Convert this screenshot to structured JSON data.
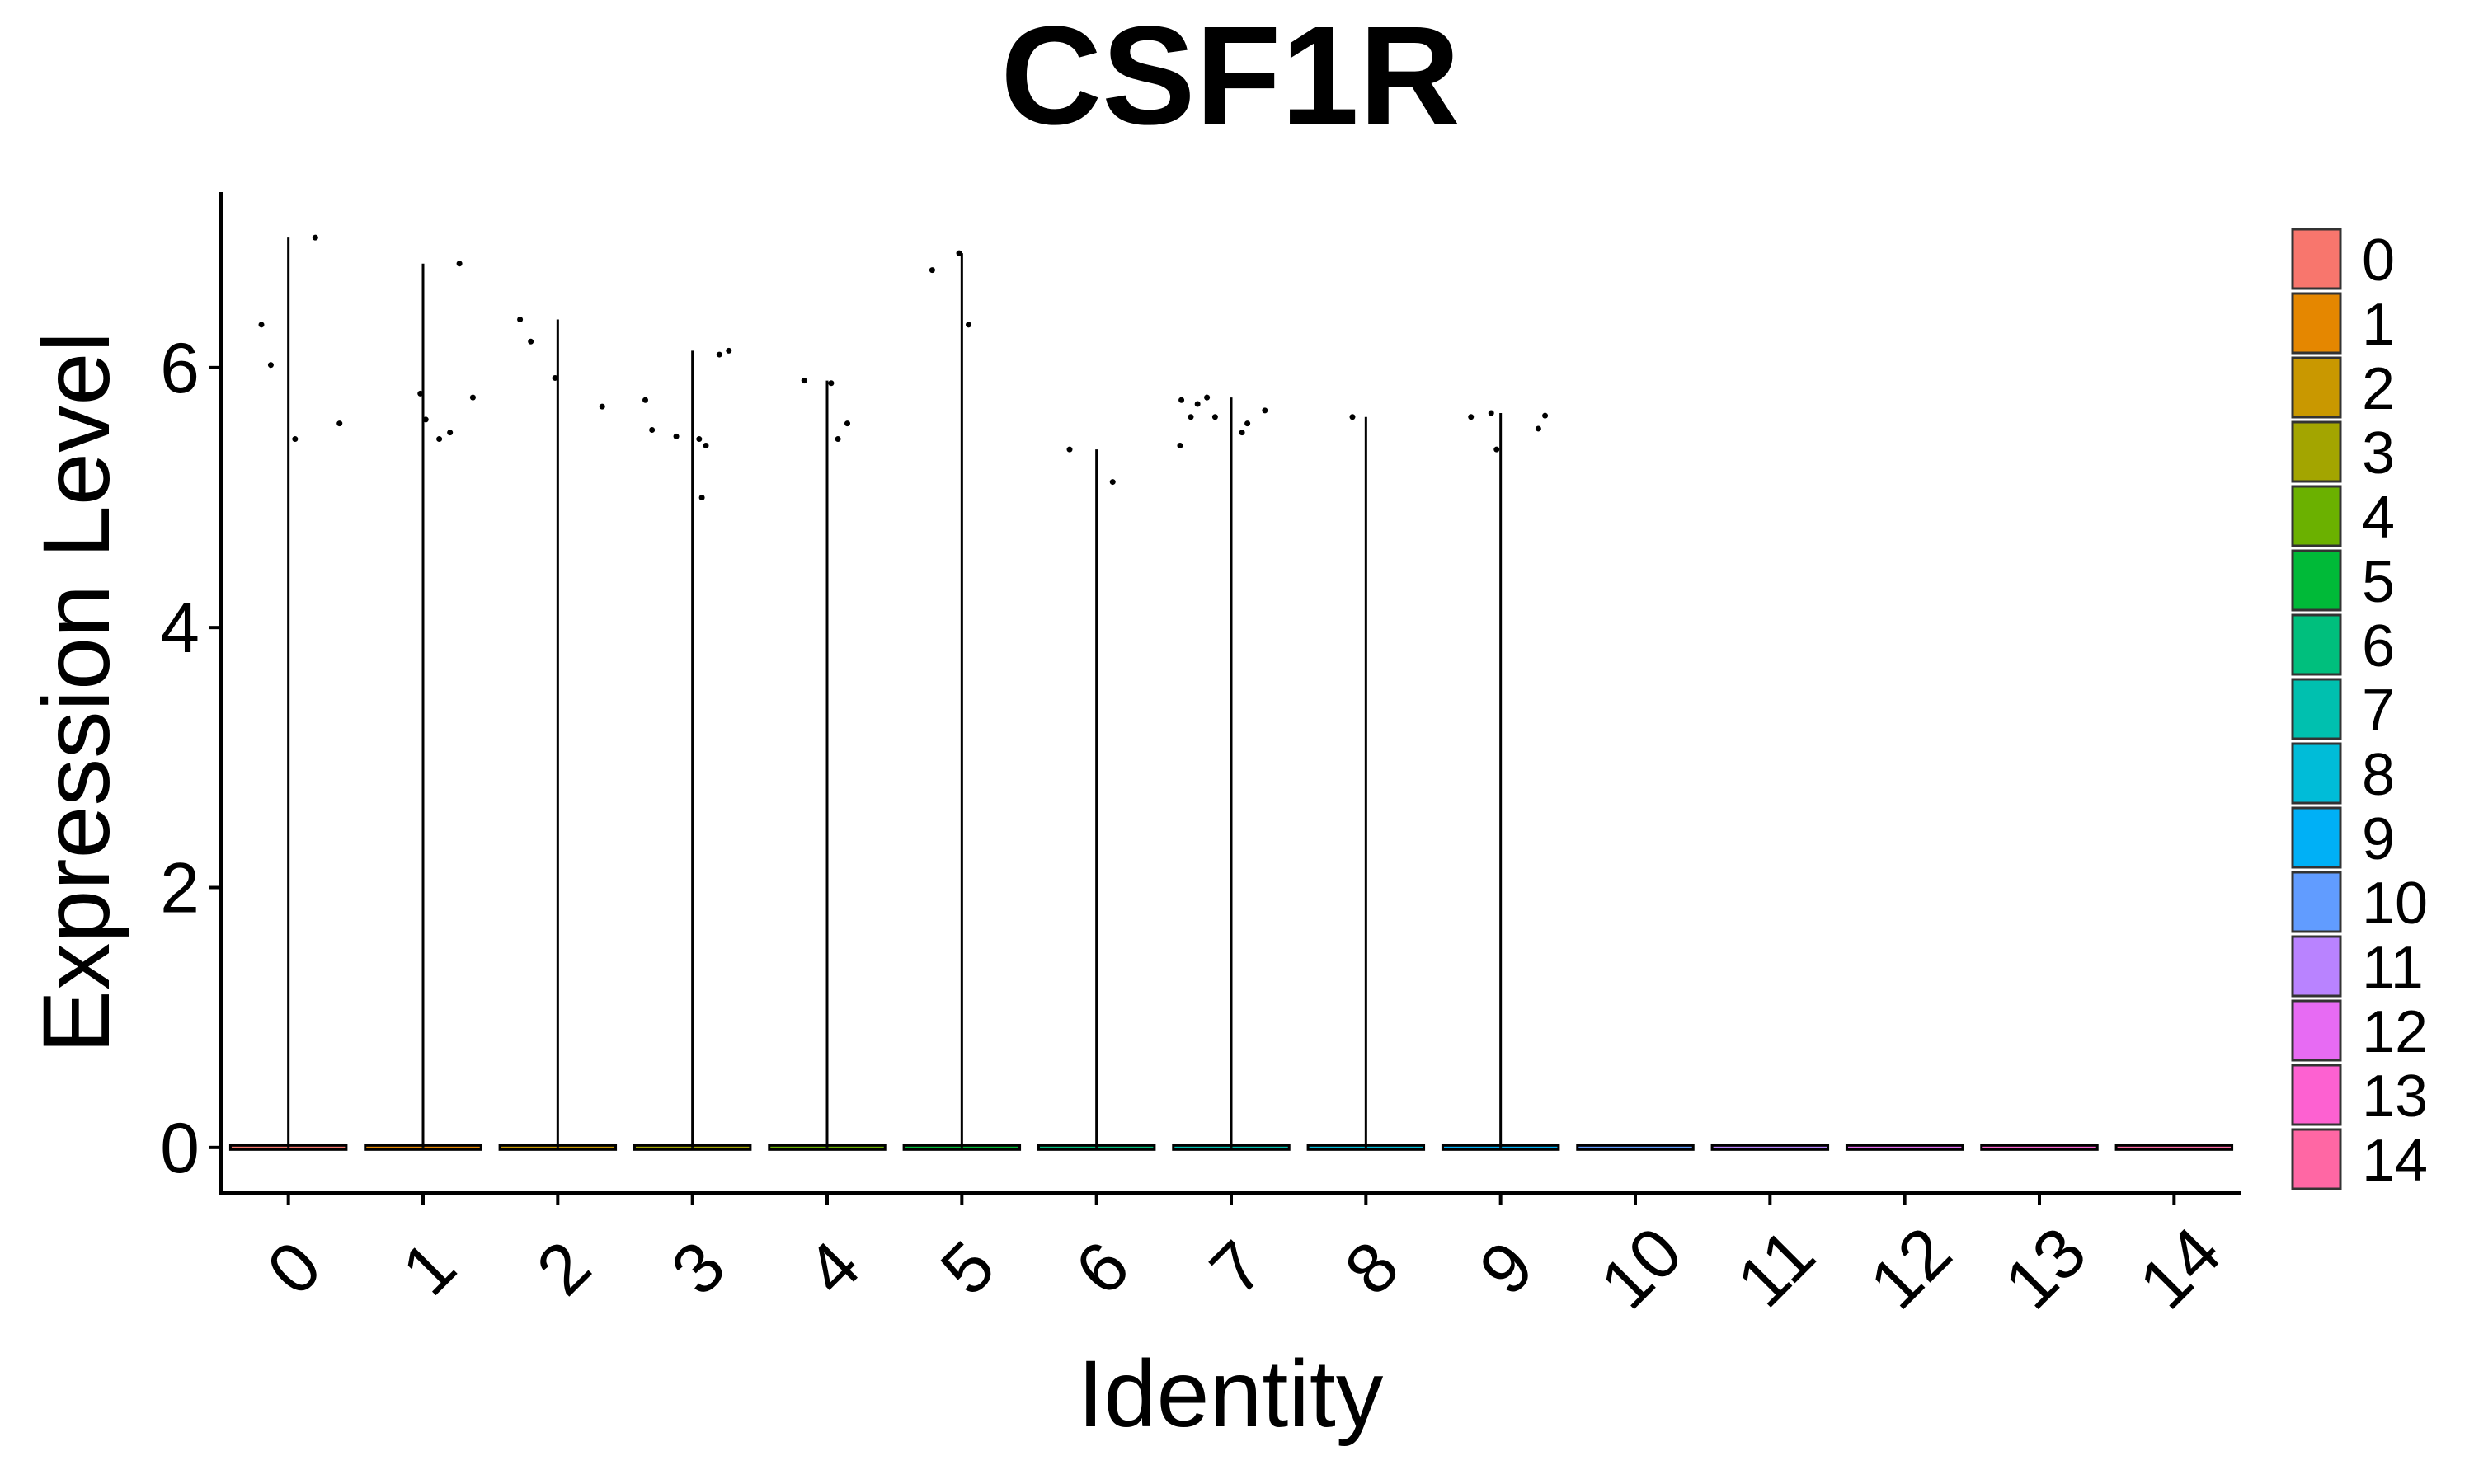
{
  "chart_data": {
    "type": "violin",
    "title": "CSF1R",
    "xlabel": "Identity",
    "ylabel": "Expression Level",
    "categories": [
      "0",
      "1",
      "2",
      "3",
      "4",
      "5",
      "6",
      "7",
      "8",
      "9",
      "10",
      "11",
      "12",
      "13",
      "14"
    ],
    "colors": [
      "#F8766D",
      "#E58700",
      "#C99800",
      "#A3A500",
      "#6BB100",
      "#00BA38",
      "#00BF7D",
      "#00C0AF",
      "#00BCD8",
      "#00B0F6",
      "#619CFF",
      "#B983FF",
      "#E76BF3",
      "#FD61D1",
      "#FF67A4"
    ],
    "ylim": [
      -0.35,
      7.35
    ],
    "yticks": [
      0,
      2,
      4,
      6
    ],
    "baseline": 0,
    "max_values": [
      7.0,
      6.8,
      6.37,
      6.13,
      5.9,
      6.88,
      5.37,
      5.77,
      5.62,
      5.65,
      0,
      0,
      0,
      0,
      0
    ],
    "points": [
      {
        "x": -0.2,
        "y": 6.33
      },
      {
        "x": -0.13,
        "y": 6.02
      },
      {
        "x": 0.05,
        "y": 5.45
      },
      {
        "x": 0.2,
        "y": 7.0
      },
      {
        "x": 0.38,
        "y": 5.57
      },
      {
        "x": 0.98,
        "y": 5.8
      },
      {
        "x": 1.02,
        "y": 5.6
      },
      {
        "x": 1.12,
        "y": 5.45
      },
      {
        "x": 1.2,
        "y": 5.5
      },
      {
        "x": 1.27,
        "y": 6.8
      },
      {
        "x": 1.37,
        "y": 5.77
      },
      {
        "x": 1.72,
        "y": 6.37
      },
      {
        "x": 1.8,
        "y": 6.2
      },
      {
        "x": 1.98,
        "y": 5.92
      },
      {
        "x": 2.33,
        "y": 5.7
      },
      {
        "x": 2.65,
        "y": 5.75
      },
      {
        "x": 2.7,
        "y": 5.52
      },
      {
        "x": 2.88,
        "y": 5.47
      },
      {
        "x": 3.05,
        "y": 5.45
      },
      {
        "x": 3.07,
        "y": 5.0
      },
      {
        "x": 3.1,
        "y": 5.4
      },
      {
        "x": 3.2,
        "y": 6.1
      },
      {
        "x": 3.27,
        "y": 6.13
      },
      {
        "x": 3.83,
        "y": 5.9
      },
      {
        "x": 4.03,
        "y": 5.88
      },
      {
        "x": 4.08,
        "y": 5.45
      },
      {
        "x": 4.15,
        "y": 5.57
      },
      {
        "x": 4.78,
        "y": 6.75
      },
      {
        "x": 4.98,
        "y": 6.88
      },
      {
        "x": 5.05,
        "y": 6.33
      },
      {
        "x": 5.8,
        "y": 5.37
      },
      {
        "x": 6.12,
        "y": 5.12
      },
      {
        "x": 6.62,
        "y": 5.4
      },
      {
        "x": 6.63,
        "y": 5.75
      },
      {
        "x": 6.7,
        "y": 5.62
      },
      {
        "x": 6.75,
        "y": 5.72
      },
      {
        "x": 6.82,
        "y": 5.77
      },
      {
        "x": 6.88,
        "y": 5.62
      },
      {
        "x": 7.08,
        "y": 5.5
      },
      {
        "x": 7.12,
        "y": 5.57
      },
      {
        "x": 7.25,
        "y": 5.67
      },
      {
        "x": 7.9,
        "y": 5.62
      },
      {
        "x": 8.78,
        "y": 5.62
      },
      {
        "x": 8.93,
        "y": 5.65
      },
      {
        "x": 8.97,
        "y": 5.37
      },
      {
        "x": 9.28,
        "y": 5.53
      },
      {
        "x": 9.33,
        "y": 5.63
      }
    ],
    "grid": false,
    "legend_position": "right"
  }
}
